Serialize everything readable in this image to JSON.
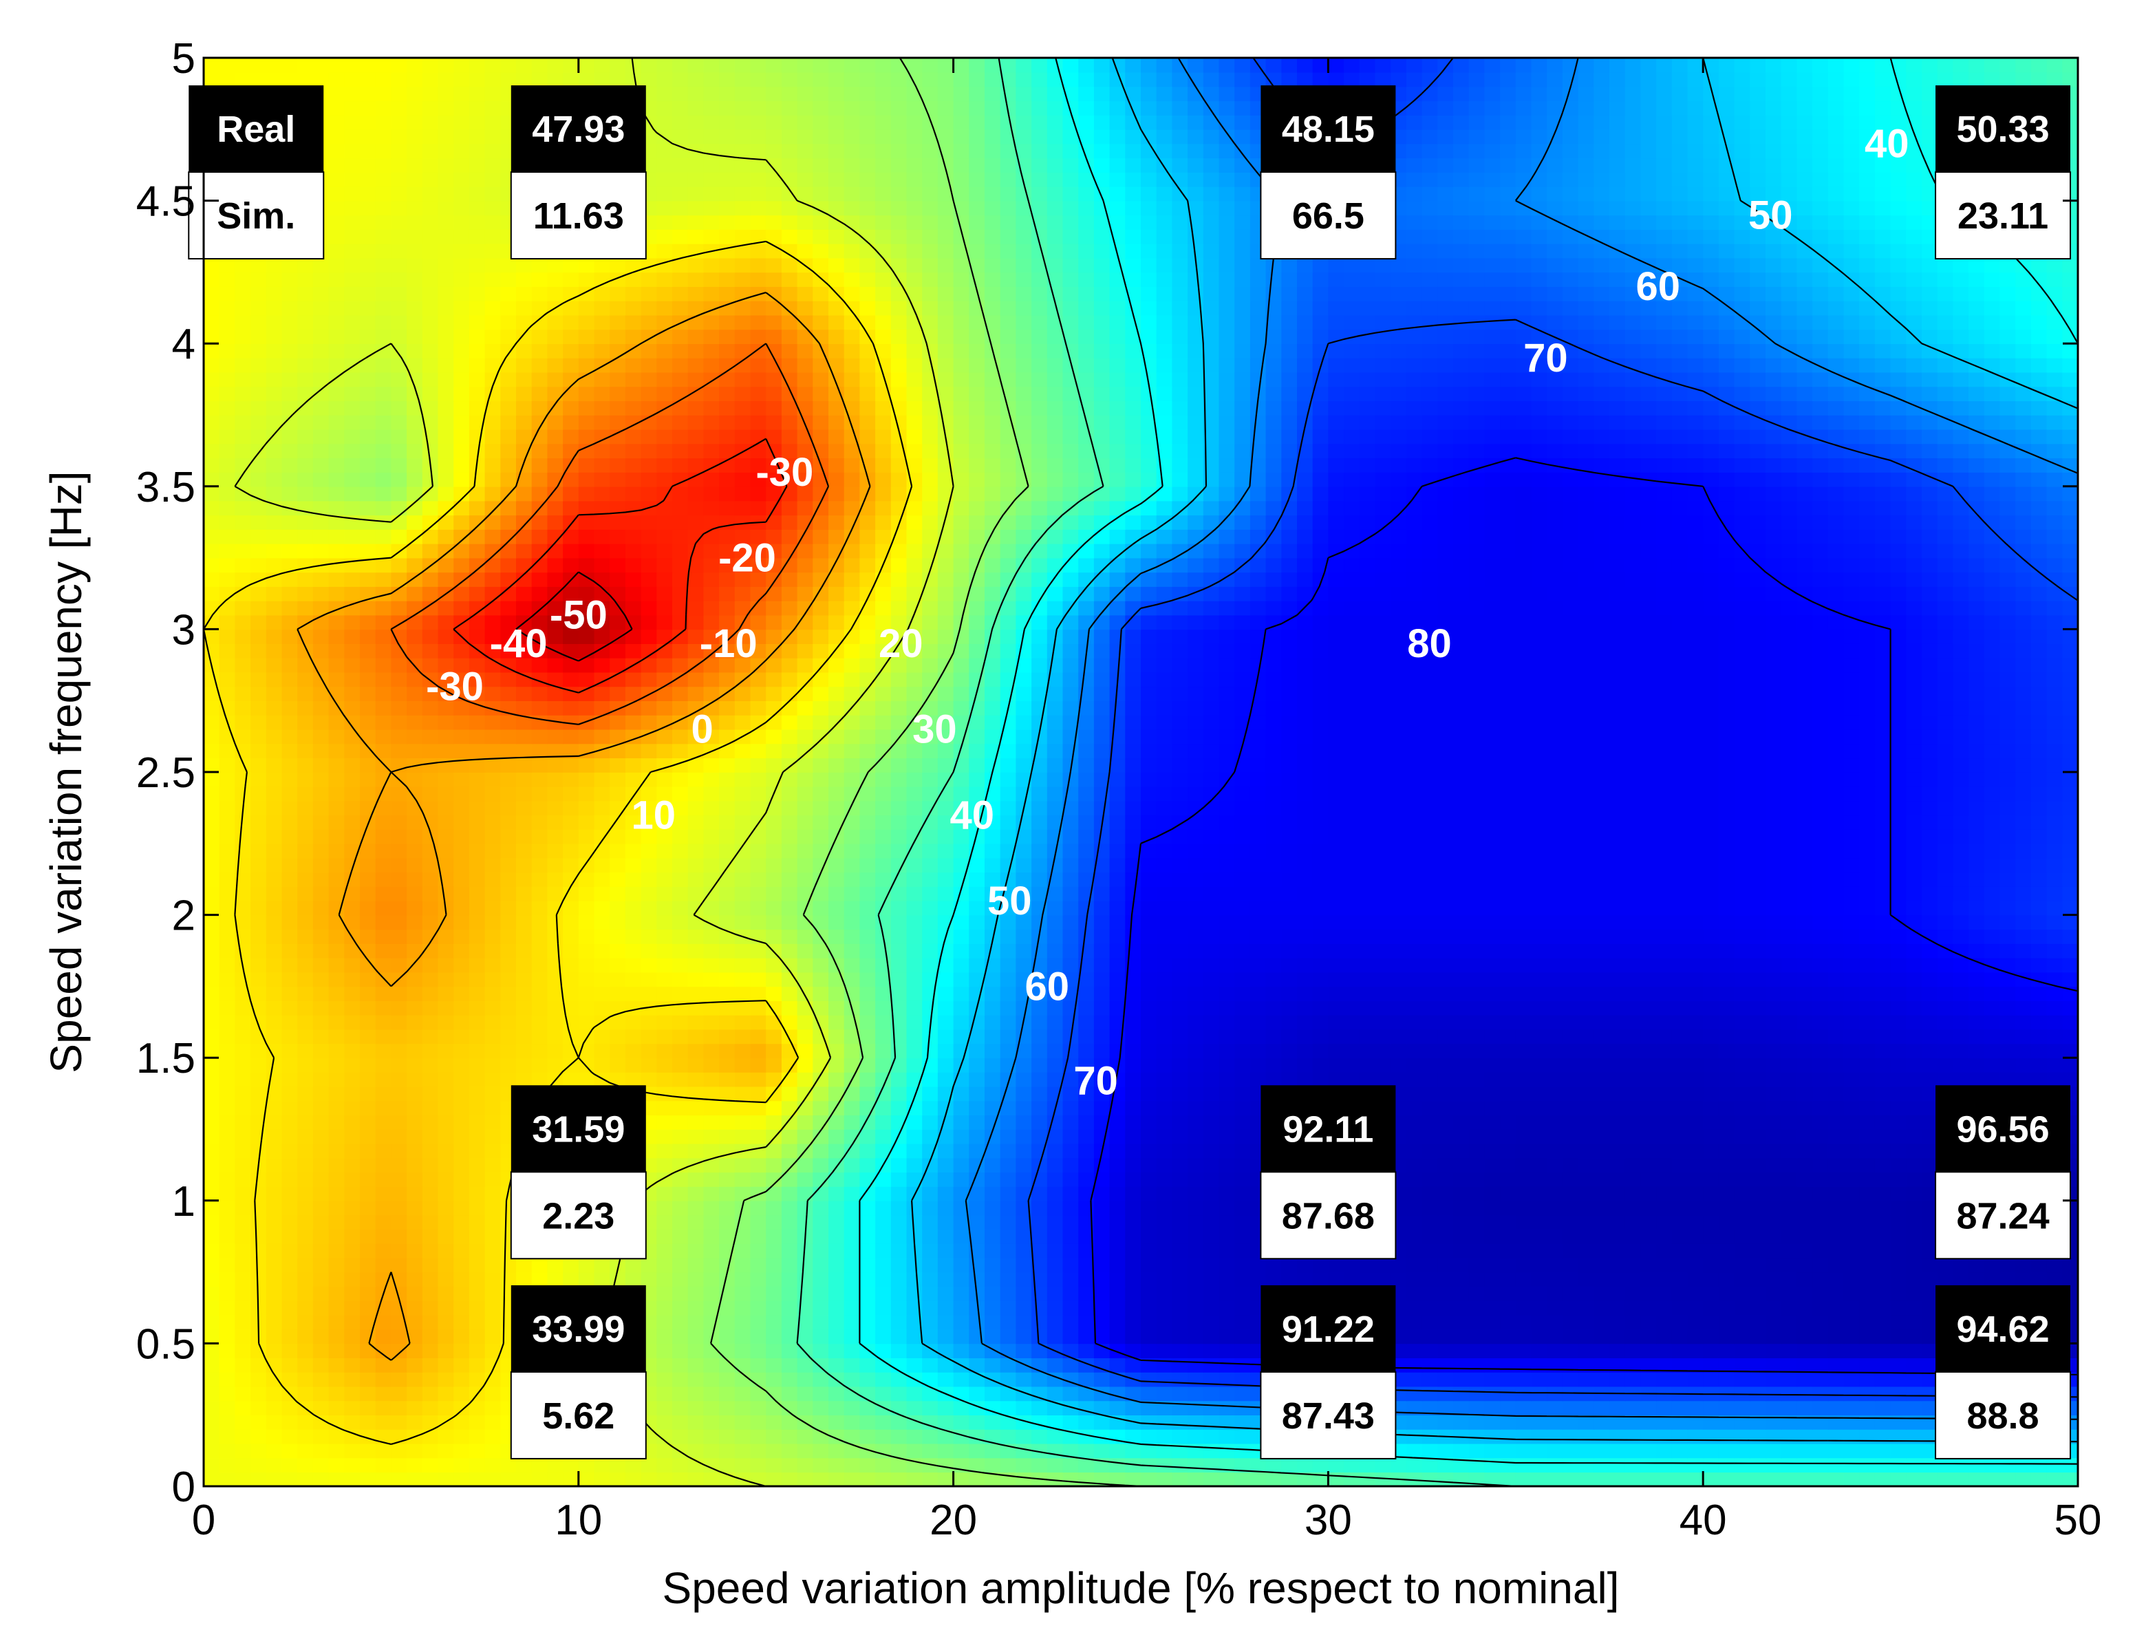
{
  "chart_data": {
    "type": "heatmap",
    "title": "",
    "xlabel": "Speed variation amplitude [% respect to nominal]",
    "ylabel": "Speed variation frequency [Hz]",
    "xlim": [
      0,
      50
    ],
    "ylim": [
      0,
      5
    ],
    "x_ticks": [
      "0",
      "10",
      "20",
      "30",
      "40",
      "50"
    ],
    "y_ticks": [
      "0",
      "0.5",
      "1",
      "1.5",
      "2",
      "2.5",
      "3",
      "3.5",
      "4",
      "4.5",
      "5"
    ],
    "colormap": "jet",
    "color_range": [
      -55,
      100
    ],
    "grid": false,
    "x": [
      0,
      5,
      10,
      15,
      20,
      25,
      30,
      35,
      40,
      45,
      50
    ],
    "y": [
      0,
      0.5,
      1,
      1.5,
      2,
      2.5,
      3,
      3.5,
      4,
      4.5,
      5
    ],
    "z": [
      [
        5,
        5,
        5,
        10,
        15,
        20,
        25,
        30,
        30,
        30,
        30
      ],
      [
        5,
        -12,
        8,
        25,
        55,
        88,
        91,
        91,
        92,
        93,
        94
      ],
      [
        3,
        -8,
        5,
        22,
        58,
        88,
        92,
        93,
        93,
        93,
        95
      ],
      [
        3,
        -5,
        0,
        -10,
        48,
        84,
        90,
        90,
        90,
        88,
        87
      ],
      [
        3,
        -15,
        2,
        15,
        40,
        82,
        82,
        82,
        82,
        80,
        72
      ],
      [
        3,
        -10,
        -5,
        8,
        30,
        78,
        82,
        82,
        82,
        80,
        74
      ],
      [
        0,
        -20,
        -50,
        -15,
        18,
        76,
        82,
        82,
        82,
        80,
        72
      ],
      [
        8,
        20,
        -25,
        -35,
        10,
        35,
        78,
        82,
        80,
        74,
        62
      ],
      [
        3,
        10,
        -5,
        -20,
        15,
        40,
        70,
        72,
        65,
        52,
        40
      ],
      [
        3,
        5,
        10,
        8,
        20,
        45,
        65,
        60,
        52,
        42,
        35
      ],
      [
        3,
        3,
        8,
        15,
        22,
        55,
        80,
        65,
        50,
        40,
        30
      ]
    ],
    "contour_levels": [
      -50,
      -40,
      -30,
      -20,
      -10,
      0,
      10,
      20,
      30,
      40,
      50,
      60,
      70,
      80
    ],
    "contour_labels": [
      {
        "text": "-50",
        "x": 10.0,
        "y": 3.05
      },
      {
        "text": "-40",
        "x": 8.4,
        "y": 2.95
      },
      {
        "text": "-30",
        "x": 6.7,
        "y": 2.8
      },
      {
        "text": "-30",
        "x": 15.5,
        "y": 3.55
      },
      {
        "text": "-20",
        "x": 14.5,
        "y": 3.25
      },
      {
        "text": "-10",
        "x": 14.0,
        "y": 2.95
      },
      {
        "text": "0",
        "x": 13.3,
        "y": 2.65
      },
      {
        "text": "10",
        "x": 12.0,
        "y": 2.35
      },
      {
        "text": "20",
        "x": 18.6,
        "y": 2.95
      },
      {
        "text": "30",
        "x": 19.5,
        "y": 2.65
      },
      {
        "text": "40",
        "x": 20.5,
        "y": 2.35
      },
      {
        "text": "50",
        "x": 21.5,
        "y": 2.05
      },
      {
        "text": "60",
        "x": 22.5,
        "y": 1.75
      },
      {
        "text": "70",
        "x": 23.8,
        "y": 1.42
      },
      {
        "text": "70",
        "x": 35.8,
        "y": 3.95
      },
      {
        "text": "80",
        "x": 32.7,
        "y": 2.95
      },
      {
        "text": "60",
        "x": 38.8,
        "y": 4.2
      },
      {
        "text": "50",
        "x": 41.8,
        "y": 4.45
      },
      {
        "text": "40",
        "x": 44.9,
        "y": 4.7
      }
    ],
    "annotations": [
      {
        "real": "Real",
        "sim": "Sim.",
        "x": 1.4,
        "y": 4.6
      },
      {
        "real": "47.93",
        "sim": "11.63",
        "x": 10.0,
        "y": 4.6
      },
      {
        "real": "48.15",
        "sim": "66.5",
        "x": 30.0,
        "y": 4.6
      },
      {
        "real": "50.33",
        "sim": "23.11",
        "x": 48.0,
        "y": 4.6
      },
      {
        "real": "31.59",
        "sim": "2.23",
        "x": 10.0,
        "y": 1.1
      },
      {
        "real": "92.11",
        "sim": "87.68",
        "x": 30.0,
        "y": 1.1
      },
      {
        "real": "96.56",
        "sim": "87.24",
        "x": 48.0,
        "y": 1.1
      },
      {
        "real": "33.99",
        "sim": "5.62",
        "x": 10.0,
        "y": 0.4
      },
      {
        "real": "91.22",
        "sim": "87.43",
        "x": 30.0,
        "y": 0.4
      },
      {
        "real": "94.62",
        "sim": "88.8",
        "x": 48.0,
        "y": 0.4
      }
    ]
  }
}
